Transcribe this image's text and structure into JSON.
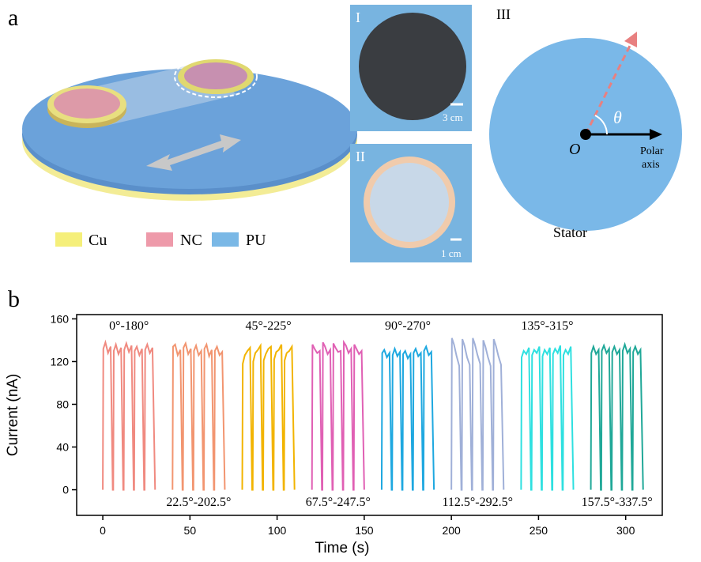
{
  "panel_labels": [
    "a",
    "b"
  ],
  "photo_labels": [
    "I",
    "II",
    "III"
  ],
  "scale_labels": [
    "3 cm",
    "1 cm"
  ],
  "theta_label": "θ",
  "origin_label": "O",
  "polar_axis_label": [
    "Polar",
    "axis"
  ],
  "stator_label": "Stator",
  "materials": [
    "Cu",
    "NC",
    "PU"
  ],
  "chart_data": {
    "type": "line",
    "x_label": "Time (s)",
    "y_label": "Current (nA)",
    "xlim": [
      -15,
      321
    ],
    "ylim": [
      -24,
      164
    ],
    "xticks": [
      0,
      50,
      100,
      150,
      200,
      250,
      300
    ],
    "yticks": [
      0,
      40,
      80,
      120,
      160
    ],
    "series": [
      {
        "name": "0°-180°",
        "color": "#f08a80",
        "x": [
          0,
          0.3,
          1.5,
          3,
          4.5,
          5.7,
          6,
          6.3,
          7.5,
          9,
          10.5,
          11.7,
          12,
          12.3,
          13.5,
          15,
          16.5,
          17.7,
          18,
          18.3,
          19.5,
          21,
          22.5,
          23.7,
          24,
          24.3,
          25.5,
          27,
          28.5,
          30
        ],
        "values": [
          0,
          132,
          138,
          128,
          134,
          0,
          0,
          130,
          136,
          127,
          133,
          0,
          0,
          131,
          137,
          129,
          135,
          0,
          0,
          130,
          134,
          126,
          132,
          0,
          0,
          131,
          136,
          128,
          133,
          0
        ]
      },
      {
        "name": "22.5°-202.5°",
        "color": "#f29570",
        "x": [
          40,
          40.3,
          41.5,
          43,
          44.5,
          45.7,
          46,
          46.3,
          47.5,
          49,
          50.5,
          51.7,
          52,
          52.3,
          53.5,
          55,
          56.5,
          57.7,
          58,
          58.3,
          59.5,
          61,
          62.5,
          63.7,
          64,
          64.3,
          65.5,
          67,
          68.5,
          70
        ],
        "values": [
          0,
          134,
          136,
          126,
          131,
          0,
          0,
          133,
          137,
          127,
          132,
          0,
          0,
          130,
          135,
          126,
          130,
          0,
          0,
          132,
          136,
          125,
          131,
          0,
          0,
          130,
          134,
          126,
          129,
          0
        ]
      },
      {
        "name": "45°-225°",
        "color": "#f2b400",
        "x": [
          80,
          80.3,
          81.5,
          83,
          84.5,
          85.7,
          86,
          86.3,
          87.5,
          89,
          90.5,
          91.7,
          92,
          92.3,
          93.5,
          95,
          96.5,
          97.7,
          98,
          98.3,
          99.5,
          101,
          102.5,
          103.7,
          104,
          104.3,
          105.5,
          107,
          108.5,
          110
        ],
        "values": [
          0,
          118,
          126,
          130,
          133,
          0,
          0,
          120,
          128,
          131,
          135,
          0,
          0,
          121,
          127,
          132,
          134,
          0,
          0,
          122,
          129,
          131,
          136,
          0,
          0,
          121,
          128,
          130,
          134,
          0
        ]
      },
      {
        "name": "67.5°-247.5°",
        "color": "#e060b4",
        "x": [
          120,
          120.3,
          121.5,
          123,
          124.5,
          125.7,
          126,
          126.3,
          127.5,
          129,
          130.5,
          131.7,
          132,
          132.3,
          133.5,
          135,
          136.5,
          137.7,
          138,
          138.3,
          139.5,
          141,
          142.5,
          143.7,
          144,
          144.3,
          145.5,
          147,
          148.5,
          150
        ],
        "values": [
          0,
          136,
          132,
          128,
          130,
          0,
          0,
          138,
          134,
          127,
          131,
          0,
          0,
          137,
          133,
          129,
          130,
          0,
          0,
          138,
          135,
          128,
          132,
          0,
          0,
          136,
          132,
          127,
          130,
          0
        ]
      },
      {
        "name": "90°-270°",
        "color": "#1ea8e0",
        "x": [
          160,
          160.3,
          161.5,
          163,
          164.5,
          165.7,
          166,
          166.3,
          167.5,
          169,
          170.5,
          171.7,
          172,
          172.3,
          173.5,
          175,
          176.5,
          177.7,
          178,
          178.3,
          179.5,
          181,
          182.5,
          183.7,
          184,
          184.3,
          185.5,
          187,
          188.5,
          190
        ],
        "values": [
          0,
          128,
          131,
          124,
          128,
          0,
          0,
          126,
          132,
          125,
          129,
          0,
          0,
          127,
          130,
          123,
          127,
          0,
          0,
          128,
          132,
          125,
          128,
          0,
          0,
          130,
          134,
          126,
          129,
          0
        ]
      },
      {
        "name": "112.5°-292.5°",
        "color": "#a0b0d8",
        "x": [
          200,
          200.3,
          201.5,
          203,
          204.5,
          205.7,
          206,
          206.3,
          207.5,
          209,
          210.5,
          211.7,
          212,
          212.3,
          213.5,
          215,
          216.5,
          217.7,
          218,
          218.3,
          219.5,
          221,
          222.5,
          223.7,
          224,
          224.3,
          225.5,
          227,
          228.5,
          230
        ],
        "values": [
          0,
          142,
          136,
          125,
          116,
          0,
          0,
          141,
          135,
          124,
          117,
          0,
          0,
          142,
          136,
          126,
          118,
          0,
          0,
          140,
          134,
          124,
          116,
          0,
          0,
          141,
          135,
          125,
          117,
          0
        ]
      },
      {
        "name": "135°-315°",
        "color": "#2ee0e0",
        "x": [
          240,
          240.3,
          241.5,
          243,
          244.5,
          245.7,
          246,
          246.3,
          247.5,
          249,
          250.5,
          251.7,
          252,
          252.3,
          253.5,
          255,
          256.5,
          257.7,
          258,
          258.3,
          259.5,
          261,
          262.5,
          263.7,
          264,
          264.3,
          265.5,
          267,
          268.5,
          270
        ],
        "values": [
          0,
          124,
          130,
          127,
          133,
          0,
          0,
          126,
          131,
          128,
          134,
          0,
          0,
          125,
          131,
          127,
          133,
          0,
          0,
          127,
          132,
          128,
          135,
          0,
          0,
          126,
          131,
          127,
          134,
          0
        ]
      },
      {
        "name": "157.5°-337.5°",
        "color": "#20a898",
        "x": [
          280,
          280.3,
          281.5,
          283,
          284.5,
          285.7,
          286,
          286.3,
          287.5,
          289,
          290.5,
          291.7,
          292,
          292.3,
          293.5,
          295,
          296.5,
          297.7,
          298,
          298.3,
          299.5,
          301,
          302.5,
          303.7,
          304,
          304.3,
          305.5,
          307,
          308.5,
          310
        ],
        "values": [
          0,
          128,
          134,
          127,
          131,
          0,
          0,
          130,
          135,
          128,
          132,
          0,
          0,
          129,
          134,
          127,
          131,
          0,
          0,
          130,
          136,
          128,
          132,
          0,
          0,
          129,
          134,
          127,
          131,
          0
        ]
      }
    ]
  }
}
